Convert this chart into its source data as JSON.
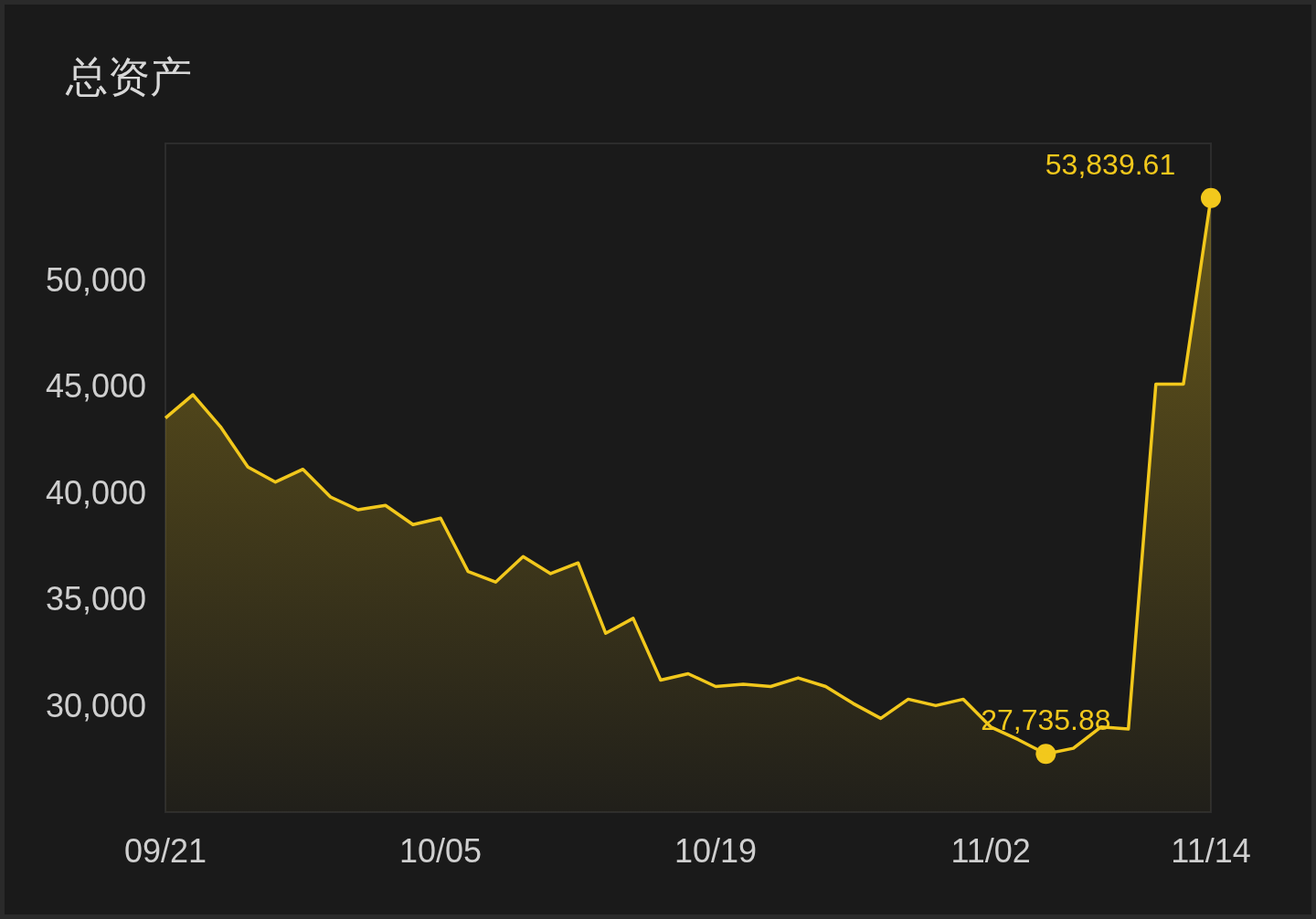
{
  "chart_data": {
    "type": "area",
    "title": "总资产",
    "categories": [
      "09/21",
      null,
      null,
      null,
      null,
      null,
      null,
      null,
      null,
      null,
      "10/05",
      null,
      null,
      null,
      null,
      null,
      null,
      null,
      null,
      null,
      "10/19",
      null,
      null,
      null,
      null,
      null,
      null,
      null,
      null,
      null,
      "11/02",
      null,
      null,
      null,
      null,
      null,
      null,
      null,
      "11/14"
    ],
    "values": [
      43500,
      44600,
      43100,
      41200,
      40500,
      41100,
      39800,
      39200,
      39400,
      38500,
      38800,
      36300,
      35800,
      37000,
      36200,
      36700,
      33400,
      34100,
      31200,
      31500,
      30900,
      31000,
      30900,
      31300,
      30900,
      30100,
      29400,
      30300,
      30000,
      30300,
      29000,
      28400,
      27735.88,
      28000,
      29000,
      28900,
      45100,
      45100,
      53839.61
    ],
    "value_labels": [
      null,
      null,
      null,
      null,
      null,
      null,
      null,
      null,
      null,
      null,
      null,
      null,
      null,
      null,
      null,
      null,
      null,
      null,
      null,
      null,
      null,
      null,
      null,
      null,
      null,
      null,
      null,
      null,
      null,
      null,
      null,
      null,
      "27,735.88",
      null,
      null,
      null,
      null,
      null,
      "53,839.61"
    ],
    "color": "#f2c81c",
    "ylim": [
      25000,
      56400
    ],
    "yticks": [
      {
        "value": 30000,
        "label": "30,000"
      },
      {
        "value": 35000,
        "label": "35,000"
      },
      {
        "value": 40000,
        "label": "40,000"
      },
      {
        "value": 45000,
        "label": "45,000"
      },
      {
        "value": 50000,
        "label": "50,000"
      }
    ]
  }
}
